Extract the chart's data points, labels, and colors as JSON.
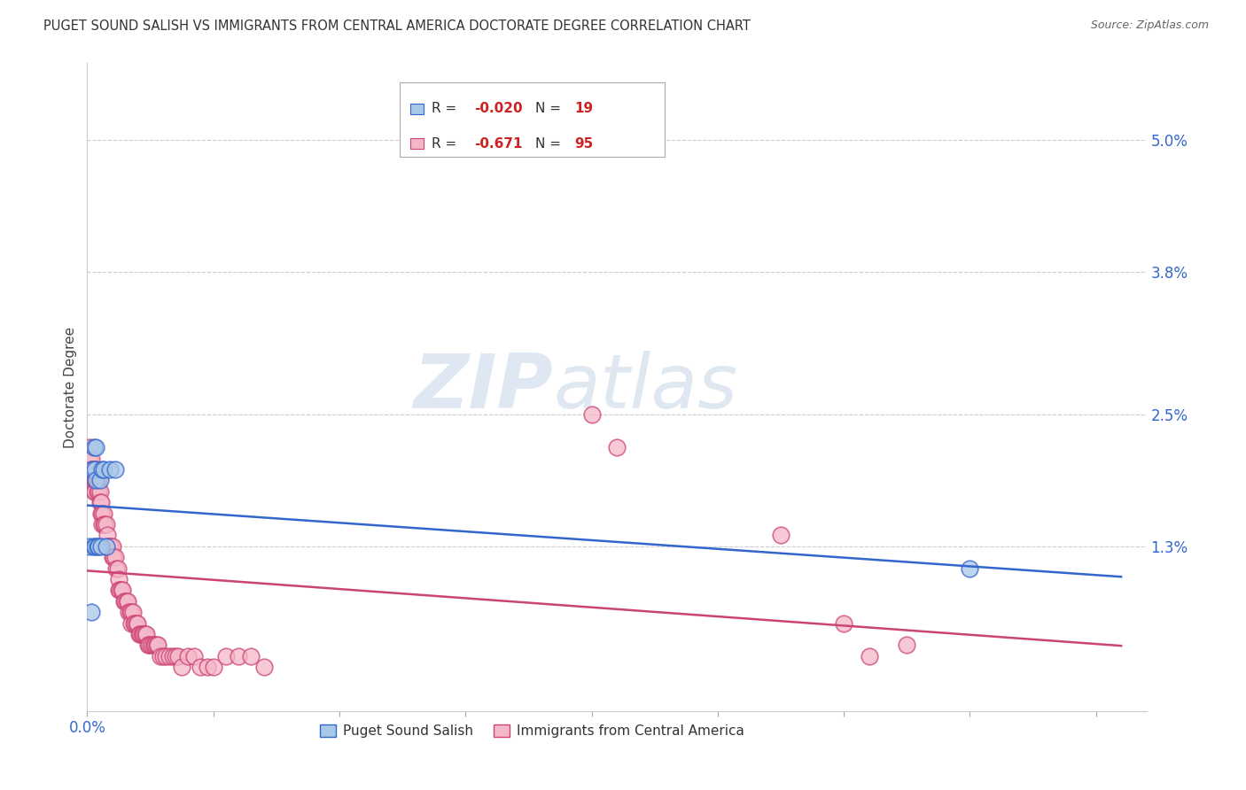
{
  "title": "PUGET SOUND SALISH VS IMMIGRANTS FROM CENTRAL AMERICA DOCTORATE DEGREE CORRELATION CHART",
  "source": "Source: ZipAtlas.com",
  "ylabel": "Doctorate Degree",
  "ytick_vals": [
    0.0,
    0.013,
    0.025,
    0.038,
    0.05
  ],
  "ytick_labels": [
    "",
    "1.3%",
    "2.5%",
    "3.8%",
    "5.0%"
  ],
  "xtick_vals": [
    0.0,
    0.1,
    0.2,
    0.3,
    0.4,
    0.5,
    0.6,
    0.7,
    0.8
  ],
  "xtick_labels_show": {
    "0.0": "0.0%"
  },
  "xlim": [
    0.0,
    0.84
  ],
  "ylim": [
    -0.002,
    0.057
  ],
  "blue_R": "-0.020",
  "blue_N": "19",
  "pink_R": "-0.671",
  "pink_N": "95",
  "blue_color": "#a8c8e8",
  "pink_color": "#f5b8c8",
  "trendline_blue_color": "#3366cc",
  "trendline_pink_color": "#cc4477",
  "grid_color": "#cccccc",
  "watermark_zip": "ZIP",
  "watermark_atlas": "atlas",
  "legend_label_blue": "Puget Sound Salish",
  "legend_label_pink": "Immigrants from Central America",
  "blue_x": [
    0.002,
    0.003,
    0.004,
    0.005,
    0.005,
    0.006,
    0.006,
    0.007,
    0.007,
    0.008,
    0.009,
    0.01,
    0.011,
    0.012,
    0.013,
    0.015,
    0.018,
    0.022,
    0.7
  ],
  "blue_y": [
    0.013,
    0.007,
    0.02,
    0.022,
    0.013,
    0.02,
    0.013,
    0.022,
    0.019,
    0.013,
    0.013,
    0.019,
    0.013,
    0.02,
    0.02,
    0.013,
    0.02,
    0.02,
    0.011
  ],
  "pink_x": [
    0.002,
    0.002,
    0.003,
    0.003,
    0.004,
    0.004,
    0.005,
    0.005,
    0.005,
    0.006,
    0.006,
    0.006,
    0.007,
    0.007,
    0.008,
    0.008,
    0.009,
    0.009,
    0.01,
    0.01,
    0.011,
    0.011,
    0.012,
    0.012,
    0.013,
    0.013,
    0.014,
    0.015,
    0.016,
    0.016,
    0.017,
    0.018,
    0.019,
    0.02,
    0.02,
    0.021,
    0.022,
    0.023,
    0.024,
    0.025,
    0.025,
    0.026,
    0.027,
    0.028,
    0.029,
    0.03,
    0.031,
    0.032,
    0.033,
    0.034,
    0.035,
    0.035,
    0.036,
    0.037,
    0.038,
    0.039,
    0.04,
    0.041,
    0.042,
    0.043,
    0.044,
    0.045,
    0.046,
    0.047,
    0.048,
    0.049,
    0.05,
    0.052,
    0.053,
    0.054,
    0.055,
    0.056,
    0.058,
    0.06,
    0.062,
    0.065,
    0.068,
    0.07,
    0.072,
    0.075,
    0.08,
    0.085,
    0.09,
    0.095,
    0.1,
    0.11,
    0.12,
    0.13,
    0.14,
    0.4,
    0.42,
    0.55,
    0.6,
    0.62,
    0.65
  ],
  "pink_y": [
    0.022,
    0.021,
    0.021,
    0.02,
    0.02,
    0.019,
    0.02,
    0.019,
    0.018,
    0.02,
    0.019,
    0.018,
    0.02,
    0.019,
    0.019,
    0.018,
    0.019,
    0.018,
    0.018,
    0.017,
    0.017,
    0.016,
    0.016,
    0.015,
    0.016,
    0.015,
    0.015,
    0.015,
    0.014,
    0.013,
    0.013,
    0.013,
    0.013,
    0.013,
    0.012,
    0.012,
    0.012,
    0.011,
    0.011,
    0.01,
    0.009,
    0.009,
    0.009,
    0.009,
    0.008,
    0.008,
    0.008,
    0.008,
    0.007,
    0.007,
    0.007,
    0.006,
    0.007,
    0.006,
    0.006,
    0.006,
    0.006,
    0.005,
    0.005,
    0.005,
    0.005,
    0.005,
    0.005,
    0.005,
    0.004,
    0.004,
    0.004,
    0.004,
    0.004,
    0.004,
    0.004,
    0.004,
    0.003,
    0.003,
    0.003,
    0.003,
    0.003,
    0.003,
    0.003,
    0.002,
    0.003,
    0.003,
    0.002,
    0.002,
    0.002,
    0.003,
    0.003,
    0.003,
    0.002,
    0.025,
    0.022,
    0.014,
    0.006,
    0.003,
    0.004
  ]
}
